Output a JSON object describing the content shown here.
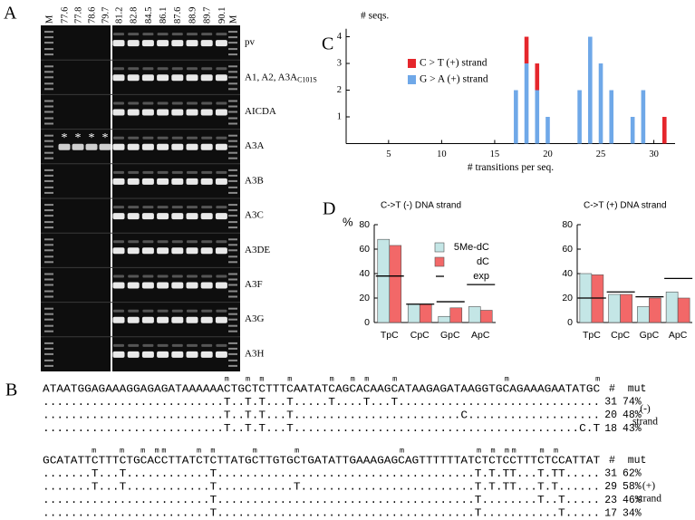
{
  "chart_data": [
    {
      "type": "bar",
      "stacked": true,
      "panel_label": "C",
      "ylabel": "# seqs.",
      "xlabel": "# transitions per seq.",
      "legend": "upper left",
      "x": [
        17,
        18,
        19,
        20,
        23,
        24,
        25,
        26,
        28,
        29,
        31
      ],
      "series": [
        {
          "name": "G > A (+) strand",
          "color": "#6fa8e8",
          "values": [
            2,
            3,
            2,
            1,
            2,
            4,
            3,
            2,
            1,
            2,
            null
          ]
        },
        {
          "name": "C > T (+) strand",
          "color": "#e5262c",
          "values": [
            null,
            1,
            1,
            null,
            null,
            null,
            null,
            null,
            null,
            null,
            1
          ]
        }
      ],
      "xlim": [
        1,
        32
      ],
      "xticks": [
        5,
        10,
        15,
        20,
        25,
        30
      ],
      "ylim": [
        0,
        4.3
      ],
      "yticks": [
        1,
        2,
        3,
        4
      ]
    },
    {
      "type": "bar",
      "panel_label": "D",
      "title": "C->T (-) DNA strand",
      "ylabel": "%",
      "legend": "upper right",
      "categories": [
        "TpC",
        "CpC",
        "GpC",
        "ApC"
      ],
      "series": [
        {
          "name": "5Me-dC",
          "color": "#c4e6e6",
          "values": [
            68,
            15,
            5,
            13
          ]
        },
        {
          "name": "dC",
          "color": "#f26868",
          "values": [
            63,
            15,
            12,
            10
          ]
        },
        {
          "name": "exp",
          "color": "#000000",
          "mark": "hline",
          "values": [
            38,
            15,
            17,
            31
          ]
        }
      ],
      "ylim": [
        0,
        80
      ],
      "yticks": [
        0,
        20,
        40,
        60,
        80
      ]
    },
    {
      "type": "bar",
      "title": "C->T (+) DNA strand",
      "categories": [
        "TpC",
        "CpC",
        "GpC",
        "ApC"
      ],
      "series": [
        {
          "color": "#c4e6e6",
          "values": [
            40,
            23,
            13,
            25
          ]
        },
        {
          "color": "#f26868",
          "values": [
            39,
            23,
            20,
            20
          ]
        },
        {
          "color": "#000000",
          "mark": "hline",
          "values": [
            20,
            25,
            21,
            36
          ]
        }
      ],
      "ylim": [
        0,
        80
      ],
      "yticks": [
        0,
        20,
        40,
        60,
        80
      ]
    }
  ],
  "gel": {
    "label": "A",
    "lanes": [
      "M",
      "77.6",
      "77.8",
      "78.6",
      "79.7",
      "81.2",
      "82.8",
      "84.5",
      "86.1",
      "87.6",
      "88.9",
      "89.7",
      "90.1",
      "M"
    ],
    "rows": [
      "pv",
      {
        "text": "A1, A2, A3A",
        "subscript": "C101S"
      },
      "AICDA",
      "A3A",
      "A3B",
      "A3C",
      "A3DE",
      "A3F",
      "A3G",
      "A3H"
    ],
    "asterisks": [
      "*",
      "*",
      "*",
      "*"
    ]
  },
  "sequences": {
    "label": "B",
    "blocks": [
      {
        "marks": "                          m  m m   m     m  m m   m               m            m",
        "reference": "ATAATGGAGAAAGGAGAGATAAAAAACTGCTCTTTCAATATCAGCACAAGCATAAGAGATAAGGTGCAGAAAGAATATGC",
        "header": "#  mut",
        "rows": [
          {
            "seq": "..........................T..T.T...T.....T....T...T.............................",
            "count": 31,
            "percent": "74%"
          },
          {
            "seq": "..........................T..T.T...T........................C...................",
            "count": 20,
            "percent": "48%"
          },
          {
            "seq": "..........................T..T.T...T.........................................C.T",
            "count": 18,
            "percent": "43%"
          }
        ],
        "strand": "(-)",
        "strand_word": "strand"
      },
      {
        "marks": "       m   m  m mm    m m     m     m              m          m m mm   m m",
        "reference": "GCATATTCTTTCTGCACCTTATCTCTTATGCTTGTGCTGATATTGAAAGAGCAGTTTTTTATCTCTCCTTTCTCCATTAT",
        "header": "#  mut",
        "rows": [
          {
            "seq": ".......T...T............T.....................................T.T.TT...T.TT.....",
            "count": 31,
            "percent": "62%"
          },
          {
            "seq": ".......T...T............T...........T.........................T.T.TT...T.T......",
            "count": 29,
            "percent": "58%"
          },
          {
            "seq": "........................T.....................................T........T..T.....",
            "count": 23,
            "percent": "46%"
          },
          {
            "seq": "........................T.....................................T...........T.....",
            "count": 17,
            "percent": "34%"
          }
        ],
        "strand": "(+)",
        "strand_word": "strand"
      }
    ]
  }
}
